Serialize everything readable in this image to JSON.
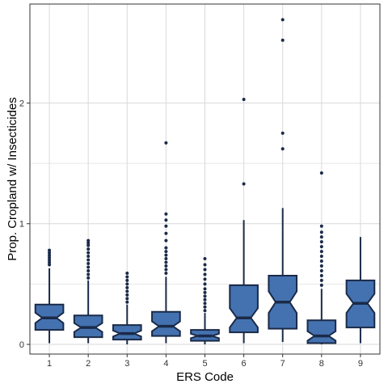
{
  "chart_data": {
    "type": "boxplot",
    "title": "",
    "xlabel": "ERS Code",
    "ylabel": "Prop. Cropland w/ Insecticides",
    "categories": [
      "1",
      "2",
      "3",
      "4",
      "5",
      "6",
      "7",
      "8",
      "9"
    ],
    "ylim": [
      -0.08,
      2.82
    ],
    "yticks": [
      0,
      1,
      2
    ],
    "ytick_labels": [
      "0",
      "1",
      "2"
    ],
    "grid": true,
    "legend": "none",
    "colors": {
      "box_fill": "#4472b0",
      "box_stroke": "#1a2a48",
      "grid": "#d9d9d9",
      "frame": "#333333"
    },
    "boxes": [
      {
        "category": "1",
        "min": 0.01,
        "q1": 0.12,
        "median": 0.22,
        "q3": 0.33,
        "max": 0.63,
        "outliers": [
          0.66,
          0.68,
          0.7,
          0.72,
          0.74,
          0.76,
          0.78
        ]
      },
      {
        "category": "2",
        "min": 0.01,
        "q1": 0.06,
        "median": 0.14,
        "q3": 0.24,
        "max": 0.53,
        "outliers": [
          0.55,
          0.58,
          0.61,
          0.64,
          0.67,
          0.7,
          0.73,
          0.76,
          0.79,
          0.82,
          0.84,
          0.86
        ]
      },
      {
        "category": "3",
        "min": 0.0,
        "q1": 0.04,
        "median": 0.09,
        "q3": 0.16,
        "max": 0.33,
        "outliers": [
          0.35,
          0.38,
          0.41,
          0.44,
          0.47,
          0.5,
          0.53,
          0.56,
          0.59
        ]
      },
      {
        "category": "4",
        "min": 0.01,
        "q1": 0.07,
        "median": 0.15,
        "q3": 0.27,
        "max": 0.56,
        "outliers": [
          0.59,
          0.62,
          0.65,
          0.68,
          0.71,
          0.74,
          0.77,
          0.8,
          0.86,
          0.92,
          0.98,
          1.03,
          1.08,
          1.67
        ]
      },
      {
        "category": "5",
        "min": 0.0,
        "q1": 0.03,
        "median": 0.07,
        "q3": 0.12,
        "max": 0.26,
        "outliers": [
          0.28,
          0.31,
          0.34,
          0.37,
          0.4,
          0.43,
          0.46,
          0.5,
          0.54,
          0.58,
          0.62,
          0.66,
          0.71
        ]
      },
      {
        "category": "6",
        "min": 0.01,
        "q1": 0.1,
        "median": 0.22,
        "q3": 0.49,
        "max": 1.03,
        "outliers": [
          1.33,
          2.03
        ]
      },
      {
        "category": "7",
        "min": 0.02,
        "q1": 0.13,
        "median": 0.35,
        "q3": 0.57,
        "max": 1.13,
        "outliers": [
          1.62,
          1.75,
          2.52,
          2.69
        ]
      },
      {
        "category": "8",
        "min": 0.0,
        "q1": 0.01,
        "median": 0.07,
        "q3": 0.2,
        "max": 0.46,
        "outliers": [
          0.49,
          0.53,
          0.57,
          0.61,
          0.65,
          0.69,
          0.73,
          0.77,
          0.81,
          0.85,
          0.89,
          0.93,
          0.98,
          1.42
        ]
      },
      {
        "category": "9",
        "min": 0.01,
        "q1": 0.14,
        "median": 0.34,
        "q3": 0.53,
        "max": 0.89,
        "outliers": []
      }
    ]
  }
}
